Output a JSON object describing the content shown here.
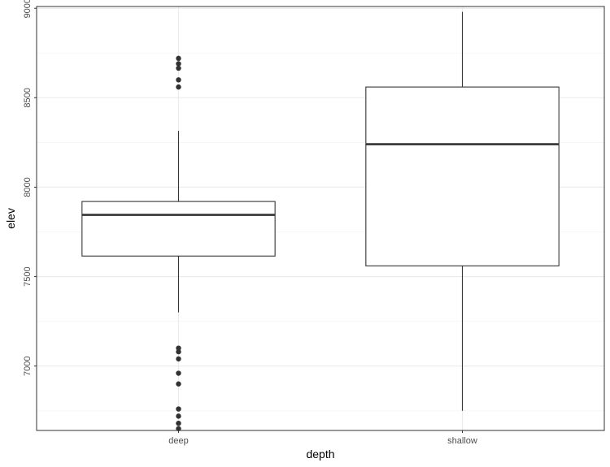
{
  "chart_data": {
    "type": "boxplot",
    "xlabel": "depth",
    "ylabel": "elev",
    "categories": [
      "deep",
      "shallow"
    ],
    "ylim": [
      6640,
      9010
    ],
    "y_ticks": [
      7000,
      7500,
      8000,
      8500,
      9000
    ],
    "y_tick_labels": [
      "7000",
      "7500",
      "8000",
      "8500",
      "9000"
    ],
    "y_minor_ticks": [
      6750,
      7250,
      7750,
      8250,
      8750
    ],
    "grid": true,
    "theme": "black-and-white",
    "series": [
      {
        "category": "deep",
        "whisker_low": 7300,
        "q1": 7615,
        "median": 7845,
        "q3": 7920,
        "whisker_high": 8315,
        "outliers": [
          8720,
          8690,
          8665,
          8600,
          8560,
          7100,
          7080,
          7040,
          6960,
          6900,
          6760,
          6720,
          6680,
          6650
        ]
      },
      {
        "category": "shallow",
        "whisker_low": 6750,
        "q1": 7560,
        "median": 8240,
        "q3": 8560,
        "whisker_high": 8980,
        "outliers": []
      }
    ],
    "colors": {
      "box_fill": "#ffffff",
      "box_line": "#333333",
      "point": "#333333",
      "grid_major": "#ebebeb",
      "grid_minor": "#f4f4f4",
      "panel_border": "#333333"
    }
  }
}
